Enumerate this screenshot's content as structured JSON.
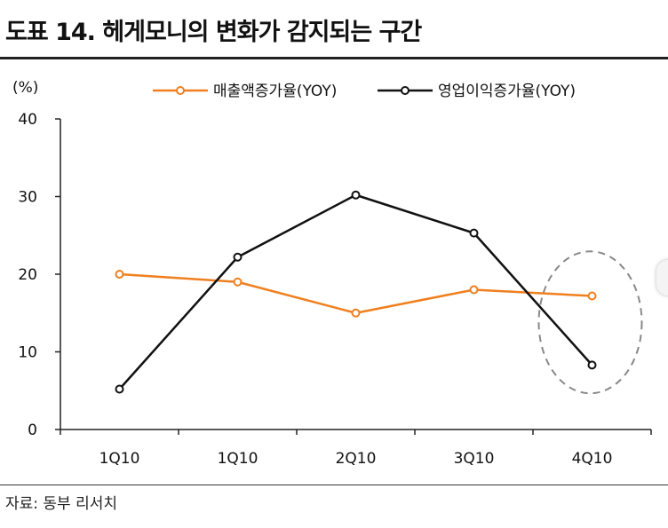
{
  "header": {
    "title": "도표 14. 헤게모니의 변화가 감지되는 구간"
  },
  "footer": {
    "source": "자료: 동부 리서치"
  },
  "chart_data": {
    "type": "line",
    "title": "",
    "xlabel": "",
    "ylabel": "(%)",
    "ylim": [
      0,
      40
    ],
    "yticks": [
      "0",
      "10",
      "20",
      "30",
      "40"
    ],
    "categories": [
      "1Q10",
      "1Q10",
      "2Q10",
      "3Q10",
      "4Q10"
    ],
    "grid": false,
    "legend_position": "top",
    "series": [
      {
        "name": "매출액증가율(YOY)",
        "color": "#f07f1e",
        "values": [
          20.0,
          19.0,
          15.0,
          18.0,
          17.2
        ]
      },
      {
        "name": "영업이익증가율(YOY)",
        "color": "#111111",
        "values": [
          5.2,
          22.2,
          30.2,
          25.3,
          8.3
        ]
      }
    ],
    "annotations": [
      {
        "type": "dashed-ellipse",
        "target_category_index": 4,
        "color": "#888888"
      }
    ]
  },
  "colors": {
    "axis": "#222222",
    "annotation": "#888888"
  }
}
